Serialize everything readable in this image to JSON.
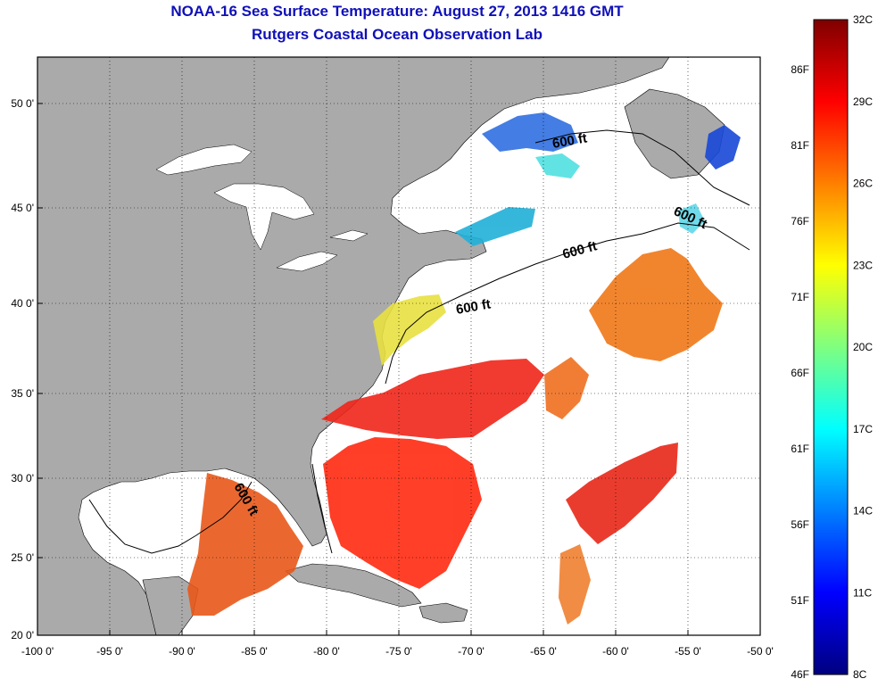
{
  "title_line1": "NOAA-16 Sea Surface Temperature:  August 27, 2013 1416 GMT",
  "title_line2": "Rutgers Coastal Ocean Observation Lab",
  "x_ticks": [
    {
      "lon": -100,
      "label": "-100 0'"
    },
    {
      "lon": -95,
      "label": "-95 0'"
    },
    {
      "lon": -90,
      "label": "-90 0'"
    },
    {
      "lon": -85,
      "label": "-85 0'"
    },
    {
      "lon": -80,
      "label": "-80 0'"
    },
    {
      "lon": -75,
      "label": "-75 0'"
    },
    {
      "lon": -70,
      "label": "-70 0'"
    },
    {
      "lon": -65,
      "label": "-65 0'"
    },
    {
      "lon": -60,
      "label": "-60 0'"
    },
    {
      "lon": -55,
      "label": "-55 0'"
    },
    {
      "lon": -50,
      "label": "-50 0'"
    }
  ],
  "y_ticks": [
    {
      "lat": 50,
      "label": "50 0'"
    },
    {
      "lat": 45,
      "label": "45 0'"
    },
    {
      "lat": 40,
      "label": "40 0'"
    },
    {
      "lat": 35,
      "label": "35 0'"
    },
    {
      "lat": 30,
      "label": "30 0'"
    },
    {
      "lat": 25,
      "label": "25 0'"
    },
    {
      "lat": 20,
      "label": "20 0'"
    }
  ],
  "contour_label": "600 ft",
  "colorbar": {
    "colors": [
      "#00007f",
      "#0000ff",
      "#007fff",
      "#00ffff",
      "#7fff7f",
      "#ffff00",
      "#ff7f00",
      "#ff0000",
      "#7f0000"
    ],
    "celsius_labels": [
      "32C",
      "29C",
      "26C",
      "23C",
      "20C",
      "17C",
      "14C",
      "11C",
      "8C"
    ],
    "fahrenheit_labels": [
      "86F",
      "81F",
      "76F",
      "71F",
      "66F",
      "61F",
      "56F",
      "51F",
      "46F"
    ]
  },
  "colors": {
    "land": "#aaaaaa",
    "title": "#1010b8"
  }
}
